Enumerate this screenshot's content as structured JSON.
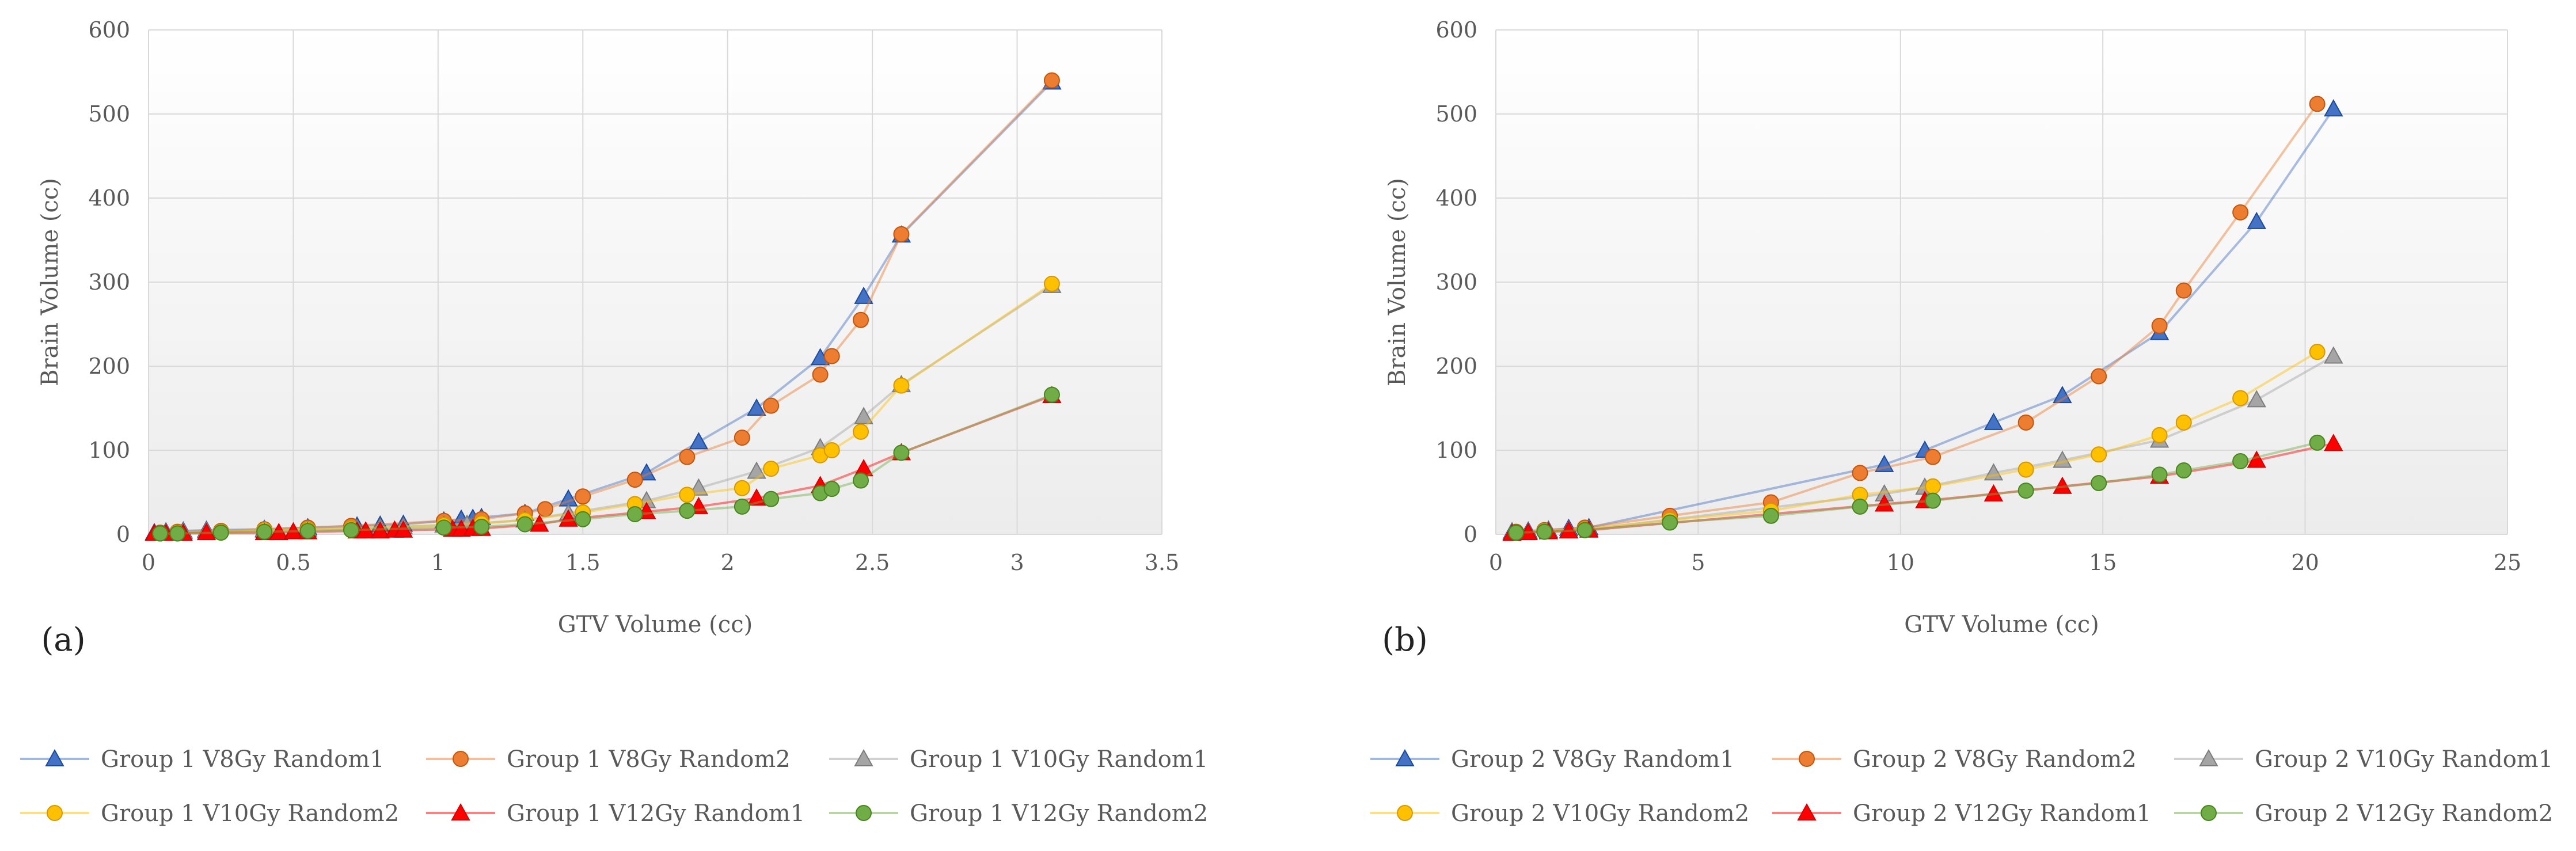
{
  "chart_data": [
    {
      "type": "line",
      "panel_label": "(a)",
      "xlabel": "GTV Volume (cc)",
      "ylabel": "Brain Volume (cc)",
      "xlim": [
        0,
        3.5
      ],
      "ylim": [
        0,
        600
      ],
      "xticks": [
        0,
        0.5,
        1,
        1.5,
        2,
        2.5,
        3,
        3.5
      ],
      "xtick_labels": [
        "0",
        "0.5",
        "1",
        "1.5",
        "2",
        "2.5",
        "3",
        "3.5"
      ],
      "yticks": [
        0,
        100,
        200,
        300,
        400,
        500,
        600
      ],
      "ytick_labels": [
        "0",
        "100",
        "200",
        "300",
        "400",
        "500",
        "600"
      ],
      "grid": true,
      "legend_position": "bottom",
      "series": [
        {
          "name": "Group 1 V8Gy Random1",
          "color": "#4472C4",
          "marker": "triangle",
          "x": [
            0.02,
            0.06,
            0.12,
            0.2,
            0.4,
            0.55,
            0.72,
            0.8,
            0.88,
            1.02,
            1.08,
            1.12,
            1.15,
            1.3,
            1.45,
            1.72,
            1.9,
            2.1,
            2.32,
            2.47,
            2.6,
            3.12
          ],
          "y": [
            2,
            3,
            4,
            5,
            6,
            8,
            10,
            11,
            12,
            16,
            18,
            19,
            20,
            25,
            42,
            73,
            110,
            150,
            210,
            283,
            356,
            538
          ]
        },
        {
          "name": "Group 1 V8Gy Random2",
          "color": "#ED7D31",
          "marker": "circle",
          "x": [
            0.04,
            0.1,
            0.25,
            0.4,
            0.55,
            0.7,
            1.02,
            1.15,
            1.3,
            1.37,
            1.5,
            1.68,
            1.86,
            2.05,
            2.15,
            2.32,
            2.36,
            2.46,
            2.6,
            3.12
          ],
          "y": [
            2,
            3,
            4,
            6,
            8,
            10,
            16,
            18,
            25,
            30,
            45,
            65,
            92,
            115,
            153,
            190,
            212,
            255,
            357,
            540
          ]
        },
        {
          "name": "Group 1 V10Gy Random1",
          "color": "#A5A5A5",
          "marker": "triangle",
          "x": [
            0.02,
            0.06,
            0.12,
            0.2,
            0.4,
            0.55,
            0.72,
            0.8,
            0.88,
            1.02,
            1.1,
            1.3,
            1.45,
            1.72,
            1.9,
            2.1,
            2.32,
            2.47,
            2.6,
            3.12
          ],
          "y": [
            1,
            2,
            3,
            4,
            5,
            6,
            7,
            8,
            9,
            11,
            12,
            17,
            25,
            40,
            55,
            75,
            103,
            140,
            178,
            296
          ]
        },
        {
          "name": "Group 1 V10Gy Random2",
          "color": "#FFC000",
          "marker": "circle",
          "x": [
            0.04,
            0.1,
            0.25,
            0.4,
            0.55,
            0.7,
            1.02,
            1.15,
            1.3,
            1.5,
            1.68,
            1.86,
            2.05,
            2.15,
            2.32,
            2.36,
            2.46,
            2.6,
            3.12
          ],
          "y": [
            1,
            2,
            3,
            5,
            6,
            7,
            11,
            13,
            17,
            26,
            36,
            47,
            55,
            78,
            94,
            100,
            122,
            177,
            298
          ]
        },
        {
          "name": "Group 1 V12Gy Random1",
          "color": "#FF0000",
          "marker": "triangle",
          "x": [
            0.02,
            0.06,
            0.12,
            0.2,
            0.4,
            0.45,
            0.5,
            0.55,
            0.72,
            0.75,
            0.8,
            0.85,
            0.88,
            1.05,
            1.08,
            1.12,
            1.15,
            1.35,
            1.45,
            1.72,
            1.9,
            2.1,
            2.32,
            2.47,
            2.6,
            3.12
          ],
          "y": [
            1,
            1,
            1,
            2,
            2,
            2,
            3,
            3,
            4,
            4,
            4,
            5,
            5,
            6,
            6,
            7,
            7,
            12,
            18,
            27,
            33,
            43,
            58,
            78,
            97,
            165
          ]
        },
        {
          "name": "Group 1 V12Gy Random2",
          "color": "#70AD47",
          "marker": "circle",
          "x": [
            0.04,
            0.1,
            0.25,
            0.4,
            0.55,
            0.7,
            1.02,
            1.15,
            1.3,
            1.5,
            1.68,
            1.86,
            2.05,
            2.15,
            2.32,
            2.36,
            2.46,
            2.6,
            3.12
          ],
          "y": [
            1,
            1,
            2,
            3,
            4,
            5,
            8,
            9,
            12,
            18,
            24,
            28,
            33,
            42,
            49,
            54,
            64,
            97,
            166
          ]
        }
      ]
    },
    {
      "type": "line",
      "panel_label": "(b)",
      "xlabel": "GTV Volume (cc)",
      "ylabel": "Brain Volume (cc)",
      "xlim": [
        0,
        25
      ],
      "ylim": [
        0,
        600
      ],
      "xticks": [
        0,
        5,
        10,
        15,
        20,
        25
      ],
      "xtick_labels": [
        "0",
        "5",
        "10",
        "15",
        "20",
        "25"
      ],
      "yticks": [
        0,
        100,
        200,
        300,
        400,
        500,
        600
      ],
      "ytick_labels": [
        "0",
        "100",
        "200",
        "300",
        "400",
        "500",
        "600"
      ],
      "grid": true,
      "legend_position": "bottom",
      "series": [
        {
          "name": "Group 2 V8Gy Random1",
          "color": "#4472C4",
          "marker": "triangle",
          "x": [
            0.4,
            0.8,
            1.3,
            1.8,
            2.3,
            9.6,
            10.6,
            12.3,
            14,
            16.4,
            18.8,
            20.7
          ],
          "y": [
            3,
            4,
            5,
            7,
            8,
            83,
            100,
            133,
            165,
            240,
            372,
            506
          ]
        },
        {
          "name": "Group 2 V8Gy Random2",
          "color": "#ED7D31",
          "marker": "circle",
          "x": [
            0.5,
            1.2,
            2.2,
            4.3,
            6.8,
            9,
            10.8,
            13.1,
            14.9,
            16.4,
            17,
            18.4,
            20.3
          ],
          "y": [
            3,
            5,
            8,
            22,
            38,
            73,
            92,
            133,
            188,
            248,
            290,
            383,
            512
          ]
        },
        {
          "name": "Group 2 V10Gy Random1",
          "color": "#A5A5A5",
          "marker": "triangle",
          "x": [
            0.4,
            0.8,
            1.3,
            1.8,
            2.3,
            9.6,
            10.6,
            12.3,
            14,
            16.4,
            18.8,
            20.7
          ],
          "y": [
            2,
            3,
            4,
            5,
            6,
            48,
            56,
            73,
            88,
            112,
            160,
            212
          ]
        },
        {
          "name": "Group 2 V10Gy Random2",
          "color": "#FFC000",
          "marker": "circle",
          "x": [
            0.5,
            1.2,
            2.2,
            4.3,
            6.8,
            9,
            10.8,
            13.1,
            14.9,
            16.4,
            17,
            18.4,
            20.3
          ],
          "y": [
            2,
            4,
            6,
            17,
            28,
            47,
            57,
            77,
            95,
            118,
            133,
            162,
            217
          ]
        },
        {
          "name": "Group 2 V12Gy Random1",
          "color": "#FF0000",
          "marker": "triangle",
          "x": [
            0.4,
            0.8,
            1.3,
            1.8,
            2.3,
            9.6,
            10.6,
            12.3,
            14,
            16.4,
            18.8,
            20.7
          ],
          "y": [
            1,
            2,
            3,
            4,
            5,
            36,
            40,
            48,
            57,
            69,
            88,
            108
          ]
        },
        {
          "name": "Group 2 V12Gy Random2",
          "color": "#70AD47",
          "marker": "circle",
          "x": [
            0.5,
            1.2,
            2.2,
            4.3,
            6.8,
            9,
            10.8,
            13.1,
            14.9,
            16.4,
            17,
            18.4,
            20.3
          ],
          "y": [
            2,
            3,
            5,
            14,
            22,
            33,
            40,
            52,
            61,
            71,
            76,
            87,
            109
          ]
        }
      ]
    }
  ]
}
